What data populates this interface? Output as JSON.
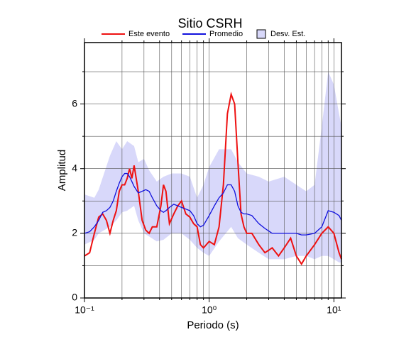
{
  "chart_data": {
    "type": "line",
    "title": "Sitio CSRH",
    "xlabel": "Periodo (s)",
    "ylabel": "Amplitud",
    "xscale": "log",
    "grid": true,
    "xlim": [
      0.1,
      11.5
    ],
    "ylim": [
      0,
      7.9
    ],
    "xticks": [
      {
        "value": 0.1,
        "label": "10⁻¹"
      },
      {
        "value": 1,
        "label": "10⁰"
      },
      {
        "value": 10,
        "label": "10¹"
      }
    ],
    "xminor": [
      0.2,
      0.3,
      0.4,
      0.5,
      0.6,
      0.7,
      0.8,
      0.9,
      2,
      3,
      4,
      5,
      6,
      7,
      8,
      9
    ],
    "yticks": [
      0,
      2,
      4,
      6
    ],
    "yminor": [
      1,
      3,
      5,
      7
    ],
    "x": [
      0.1,
      0.11,
      0.12,
      0.13,
      0.14,
      0.15,
      0.16,
      0.17,
      0.18,
      0.19,
      0.2,
      0.21,
      0.22,
      0.23,
      0.24,
      0.25,
      0.27,
      0.29,
      0.31,
      0.33,
      0.35,
      0.38,
      0.41,
      0.43,
      0.45,
      0.48,
      0.52,
      0.56,
      0.6,
      0.65,
      0.7,
      0.75,
      0.8,
      0.85,
      0.9,
      1.0,
      1.1,
      1.2,
      1.3,
      1.4,
      1.5,
      1.6,
      1.7,
      1.8,
      1.9,
      2.0,
      2.2,
      2.5,
      2.8,
      3.2,
      3.6,
      4.0,
      4.5,
      5.0,
      5.5,
      6.0,
      7.0,
      8.0,
      9.0,
      10,
      11,
      11.5
    ],
    "series": [
      {
        "name": "Este evento",
        "color": "#ee1111",
        "values": [
          1.3,
          1.4,
          2.0,
          2.5,
          2.6,
          2.4,
          2.0,
          2.4,
          2.7,
          3.3,
          3.5,
          3.5,
          3.7,
          4.0,
          3.7,
          4.1,
          3.3,
          2.4,
          2.1,
          2.0,
          2.2,
          2.2,
          2.85,
          3.5,
          3.3,
          2.3,
          2.6,
          2.85,
          3.0,
          2.6,
          2.5,
          2.3,
          2.2,
          1.65,
          1.55,
          1.75,
          1.65,
          2.2,
          3.5,
          5.7,
          6.3,
          6.0,
          4.2,
          2.6,
          2.2,
          2.0,
          2.0,
          1.65,
          1.4,
          1.55,
          1.3,
          1.55,
          1.85,
          1.3,
          1.05,
          1.3,
          1.65,
          2.0,
          2.2,
          2.0,
          1.4,
          1.2
        ]
      },
      {
        "name": "Promedio",
        "color": "#1111dd",
        "values": [
          2.0,
          2.05,
          2.2,
          2.4,
          2.65,
          2.7,
          2.8,
          3.0,
          3.3,
          3.55,
          3.75,
          3.85,
          3.85,
          3.75,
          3.6,
          3.45,
          3.25,
          3.3,
          3.35,
          3.3,
          3.1,
          2.85,
          2.7,
          2.65,
          2.7,
          2.8,
          2.9,
          2.85,
          2.8,
          2.75,
          2.7,
          2.55,
          2.3,
          2.2,
          2.25,
          2.55,
          2.85,
          3.1,
          3.25,
          3.5,
          3.5,
          3.3,
          2.85,
          2.65,
          2.6,
          2.6,
          2.55,
          2.3,
          2.15,
          2.0,
          2.0,
          2.0,
          2.0,
          2.0,
          1.95,
          1.95,
          2.0,
          2.2,
          2.7,
          2.65,
          2.55,
          2.4
        ]
      }
    ],
    "band": {
      "name": "Desv. Est.",
      "color": "#d8d8fa",
      "x": [
        0.1,
        0.12,
        0.13,
        0.16,
        0.18,
        0.2,
        0.22,
        0.25,
        0.27,
        0.3,
        0.33,
        0.38,
        0.43,
        0.5,
        0.6,
        0.7,
        0.8,
        0.9,
        1,
        1.2,
        1.5,
        1.7,
        2,
        2.5,
        3,
        4,
        5,
        6,
        7,
        8,
        9,
        10,
        11,
        11.5
      ],
      "lower": [
        1.65,
        1.8,
        2.0,
        2.2,
        2.4,
        2.65,
        2.7,
        2.85,
        2.4,
        2.0,
        1.9,
        1.75,
        1.8,
        2.0,
        2.0,
        1.8,
        1.55,
        1.4,
        1.3,
        1.75,
        2.2,
        1.85,
        1.65,
        1.4,
        1.2,
        1.2,
        1.3,
        1.3,
        1.2,
        1.3,
        1.3,
        1.2,
        1.1,
        1.1
      ],
      "upper": [
        3.2,
        3.1,
        3.35,
        4.4,
        4.85,
        4.6,
        4.85,
        4.7,
        4.2,
        4.3,
        3.95,
        3.6,
        3.75,
        3.85,
        3.85,
        3.75,
        3.1,
        3.5,
        4.05,
        4.6,
        4.6,
        4.2,
        3.85,
        3.75,
        3.6,
        3.75,
        3.5,
        3.3,
        3.5,
        5.3,
        7.0,
        6.6,
        5.7,
        5.3
      ]
    }
  }
}
